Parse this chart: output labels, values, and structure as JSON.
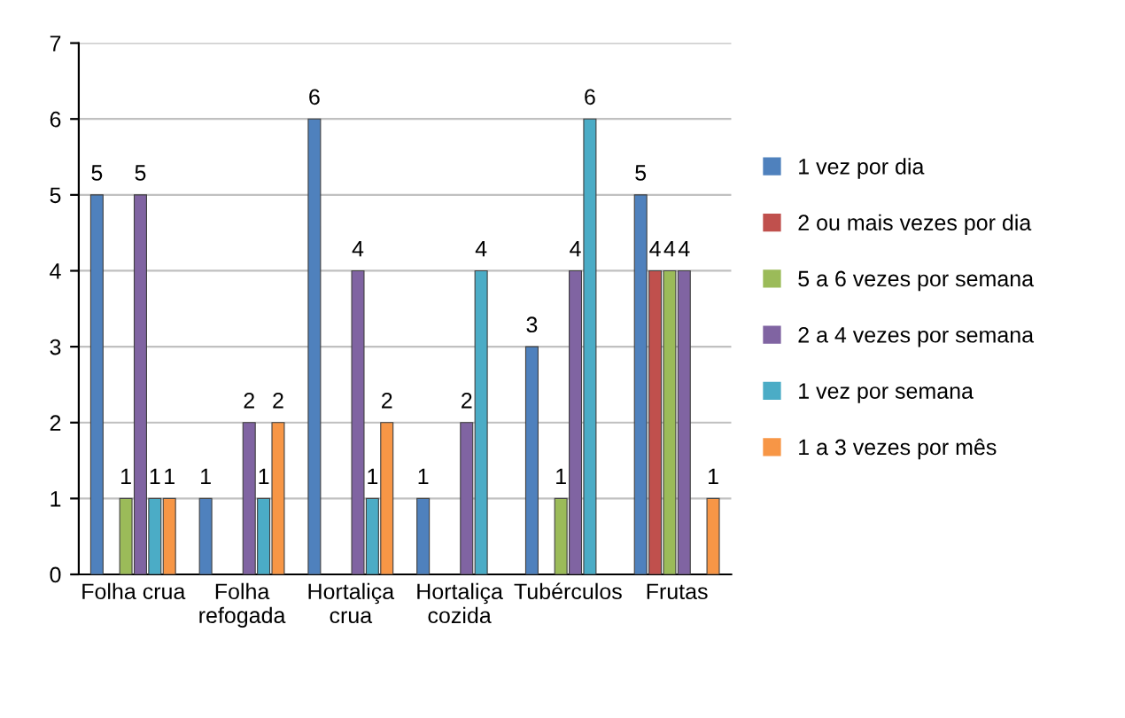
{
  "chart_data": {
    "type": "bar",
    "categories": [
      "Folha crua",
      "Folha\nrefogada",
      "Hortaliça\ncrua",
      "Hortaliça\ncozida",
      "Tubérculos",
      "Frutas"
    ],
    "series": [
      {
        "name": "1 vez por dia",
        "color": "#4f81bd",
        "values": [
          5,
          1,
          6,
          1,
          3,
          5
        ]
      },
      {
        "name": "2 ou mais vezes por dia",
        "color": "#c0504d",
        "values": [
          null,
          null,
          null,
          null,
          null,
          4
        ]
      },
      {
        "name": "5 a 6 vezes por semana",
        "color": "#9bbb59",
        "values": [
          1,
          null,
          null,
          null,
          1,
          4
        ]
      },
      {
        "name": "2 a 4 vezes por semana",
        "color": "#8064a2",
        "values": [
          5,
          2,
          4,
          2,
          4,
          4
        ]
      },
      {
        "name": "1 vez por semana",
        "color": "#4bacc6",
        "values": [
          1,
          1,
          1,
          4,
          6,
          null
        ]
      },
      {
        "name": "1 a 3 vezes por mês",
        "color": "#f79646",
        "values": [
          1,
          2,
          2,
          null,
          null,
          1
        ]
      }
    ],
    "ylim": [
      0,
      7
    ],
    "yticks": [
      0,
      1,
      2,
      3,
      4,
      5,
      6,
      7
    ],
    "grid": "y",
    "legend": "right",
    "data_labels": true
  }
}
